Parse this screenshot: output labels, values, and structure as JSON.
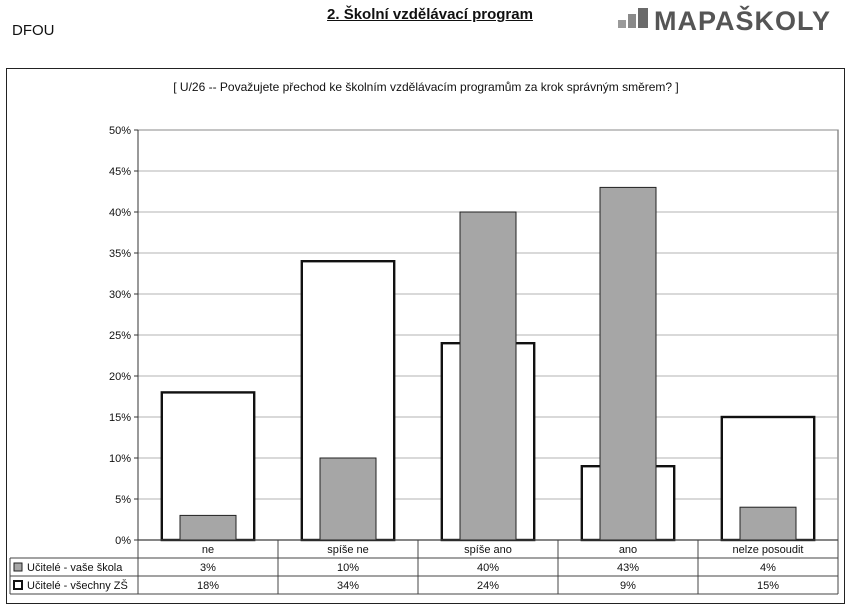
{
  "header": {
    "code": "DFOU",
    "section_title": "2. Školní vzdělávací program",
    "logo_text": "MAPAŠKOLY"
  },
  "question": "[ U/26 -- Považujete přechod ke školním vzdělávacím programům za krok správným směrem? ]",
  "chart_data": {
    "type": "bar",
    "title": "[ U/26 -- Považujete přechod ke školním vzdělávacím programům za krok správným směrem? ]",
    "categories": [
      "ne",
      "spíše ne",
      "spíše ano",
      "ano",
      "nelze posoudit"
    ],
    "series": [
      {
        "name": "Učitelé - vaše škola",
        "values": [
          3,
          10,
          40,
          43,
          4
        ],
        "labels": [
          "3%",
          "10%",
          "40%",
          "43%",
          "4%"
        ],
        "style": "filled",
        "color": "#a6a6a6"
      },
      {
        "name": "Učitelé - všechny ZŠ",
        "values": [
          18,
          34,
          24,
          9,
          15
        ],
        "labels": [
          "18%",
          "34%",
          "24%",
          "9%",
          "15%"
        ],
        "style": "outline",
        "color": "#111111"
      }
    ],
    "yticks": [
      "0%",
      "5%",
      "10%",
      "15%",
      "20%",
      "25%",
      "30%",
      "35%",
      "40%",
      "45%",
      "50%"
    ],
    "ylim": [
      0,
      50
    ],
    "grid": true,
    "legend": "data table below chart"
  }
}
